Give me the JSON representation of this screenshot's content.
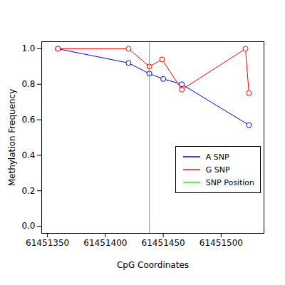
{
  "chart_data": {
    "type": "line",
    "x_label": "CpG Coordinates",
    "y_label": "Methylation Frequency",
    "xlim": [
      61451345,
      61451537
    ],
    "xticks": [
      61451350,
      61451400,
      61451450,
      61451500
    ],
    "ylim": [
      -0.04,
      1.04
    ],
    "yticks": [
      {
        "value": 0,
        "label": "0.0"
      },
      {
        "value": 0.2,
        "label": "0.2"
      },
      {
        "value": 0.4,
        "label": "0.4"
      },
      {
        "value": 0.6,
        "label": "0.6"
      },
      {
        "value": 0.8,
        "label": "0.8"
      },
      {
        "value": 1,
        "label": "1.0"
      }
    ],
    "grid": false,
    "legend": "right",
    "marker": "circle",
    "line_style": "solid",
    "series": [
      {
        "name": "A SNP",
        "color": "#0000ff",
        "type": "line",
        "x": [
          61451359,
          61451420,
          61451438,
          61451450,
          61451466,
          61451524
        ],
        "values": [
          1.0,
          0.92,
          0.86,
          0.83,
          0.8,
          0.57
        ]
      },
      {
        "name": "G SNP",
        "color": "#ff0000",
        "type": "line",
        "x": [
          61451359,
          61451420,
          61451438,
          61451449,
          61451466,
          61451521,
          61451524
        ],
        "values": [
          1.0,
          1.0,
          0.9,
          0.94,
          0.77,
          1.0,
          0.75
        ]
      },
      {
        "name": "SNP Position",
        "color": "#33dd33",
        "type": "rule",
        "x": [
          61451438
        ]
      }
    ]
  }
}
